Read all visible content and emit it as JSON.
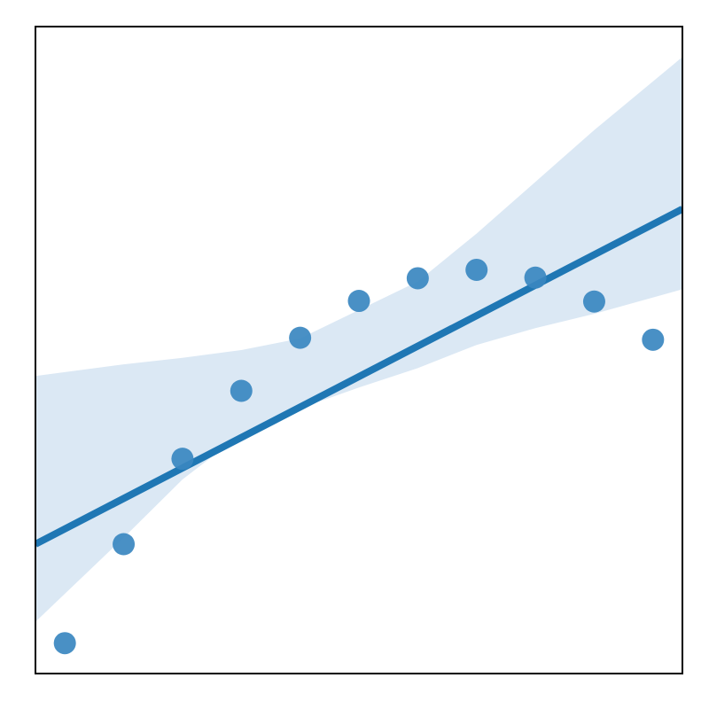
{
  "chart_data": {
    "type": "scatter",
    "title": "",
    "xlabel": "",
    "ylabel": "",
    "xlim": [
      -0.5,
      10.5
    ],
    "ylim": [
      0,
      1
    ],
    "x": [
      0,
      1,
      2,
      3,
      4,
      5,
      6,
      7,
      8,
      9,
      10
    ],
    "y": [
      0.047,
      0.2,
      0.332,
      0.437,
      0.519,
      0.576,
      0.611,
      0.624,
      0.612,
      0.575,
      0.516
    ],
    "series": [
      {
        "kind": "points",
        "x": [
          0,
          1,
          2,
          3,
          4,
          5,
          6,
          7,
          8,
          9,
          10
        ],
        "y": [
          0.047,
          0.2,
          0.332,
          0.437,
          0.519,
          0.576,
          0.611,
          0.624,
          0.612,
          0.575,
          0.516
        ],
        "color": "#3a87c0"
      },
      {
        "kind": "regression-line",
        "x": [
          -0.5,
          10.5
        ],
        "y": [
          0.2,
          0.718
        ],
        "color": "#1f77b4"
      },
      {
        "kind": "confidence-band",
        "x": [
          -0.5,
          1,
          2,
          3,
          4,
          5,
          6,
          7,
          8,
          9,
          10.5
        ],
        "upper": [
          0.46,
          0.478,
          0.488,
          0.5,
          0.518,
          0.562,
          0.606,
          0.68,
          0.76,
          0.84,
          0.953
        ],
        "lower": [
          0.08,
          0.21,
          0.3,
          0.37,
          0.41,
          0.442,
          0.472,
          0.508,
          0.534,
          0.556,
          0.594
        ],
        "color": "#dbe8f4"
      }
    ],
    "grid": false,
    "legend": "none",
    "x_ticks": [],
    "y_ticks": []
  }
}
